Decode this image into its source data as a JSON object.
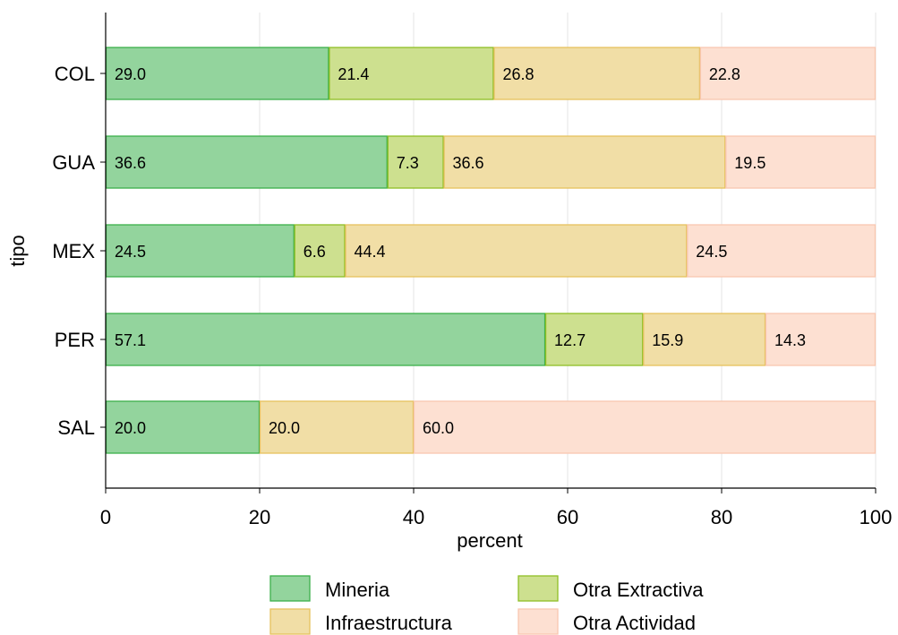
{
  "chart_data": {
    "type": "bar",
    "orientation": "horizontal",
    "stacked": true,
    "xlabel": "percent",
    "ylabel": "tipo",
    "xlim": [
      0,
      100
    ],
    "xticks": [
      "0",
      "20",
      "40",
      "60",
      "80",
      "100"
    ],
    "grid": true,
    "legend_position": "bottom",
    "categories": [
      "COL",
      "GUA",
      "MEX",
      "PER",
      "SAL"
    ],
    "series": [
      {
        "name": "Mineria",
        "fill": "#93d49d",
        "stroke": "#3cb04a",
        "values": [
          29.0,
          36.6,
          24.5,
          57.1,
          20.0
        ],
        "labels": [
          "29.0",
          "36.6",
          "24.5",
          "57.1",
          "20.0"
        ]
      },
      {
        "name": "Otra Extractiva",
        "fill": "#cde08f",
        "stroke": "#8fbf25",
        "values": [
          21.4,
          7.3,
          6.6,
          12.7,
          0
        ],
        "labels": [
          "21.4",
          "7.3",
          "6.6",
          "12.7",
          ""
        ]
      },
      {
        "name": "Infraestructura",
        "fill": "#f1dea6",
        "stroke": "#e6c15d",
        "values": [
          26.8,
          36.6,
          44.4,
          15.9,
          20.0
        ],
        "labels": [
          "26.8",
          "36.6",
          "44.4",
          "15.9",
          "20.0"
        ]
      },
      {
        "name": "Otra Actividad",
        "fill": "#fde0d2",
        "stroke": "#f9c7b0",
        "values": [
          22.8,
          19.5,
          24.5,
          14.3,
          60.0
        ],
        "labels": [
          "22.8",
          "19.5",
          "24.5",
          "14.3",
          "60.0"
        ]
      }
    ],
    "legend_order": [
      "Mineria",
      "Otra Extractiva",
      "Infraestructura",
      "Otra Actividad"
    ]
  }
}
